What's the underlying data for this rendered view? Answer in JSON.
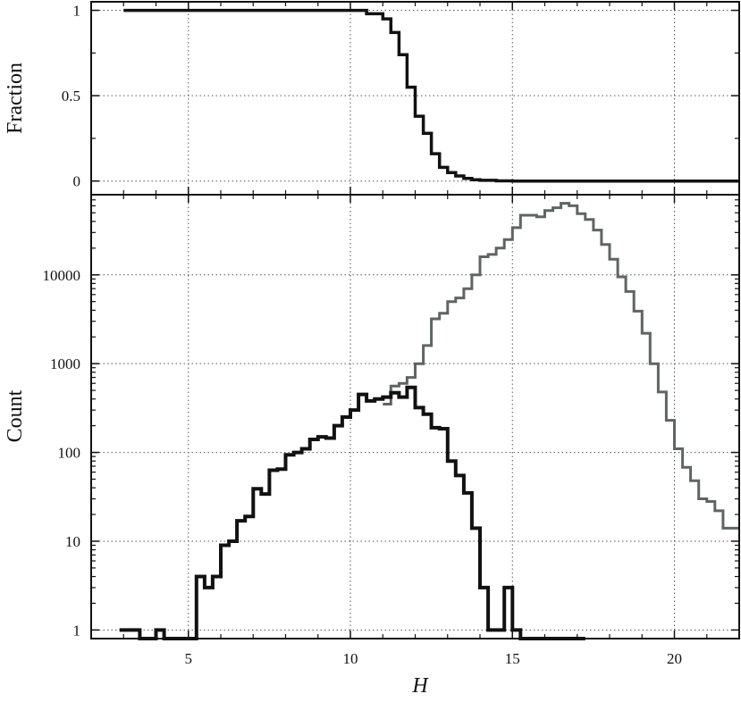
{
  "chart_data": [
    {
      "type": "line",
      "panel": "top",
      "ylabel": "Fraction",
      "xlabel": "",
      "xlim": [
        2,
        22
      ],
      "ylim": [
        -0.08,
        1.05
      ],
      "xticks": [
        5,
        10,
        15,
        20
      ],
      "yticks": [
        0,
        0.5,
        1
      ],
      "ytick_labels": [
        "0",
        "0.5",
        "1"
      ],
      "grid": true,
      "series": [
        {
          "color": "#111111",
          "x": [
            3.0,
            10.0,
            10.5,
            11.0,
            11.25,
            11.5,
            11.75,
            12.0,
            12.25,
            12.5,
            12.75,
            13.0,
            13.25,
            13.5,
            13.75,
            14.0,
            14.5,
            15.0,
            21.0
          ],
          "values": [
            1.0,
            1.0,
            0.98,
            0.95,
            0.87,
            0.74,
            0.55,
            0.38,
            0.28,
            0.16,
            0.08,
            0.05,
            0.03,
            0.015,
            0.008,
            0.004,
            0.001,
            0.0,
            0.0
          ]
        }
      ]
    },
    {
      "type": "line",
      "panel": "bottom",
      "ylabel": "Count",
      "xlabel": "H",
      "xlim": [
        2,
        22
      ],
      "ylog": true,
      "ylim": [
        0.8,
        80000
      ],
      "xticks": [
        5,
        10,
        15,
        20
      ],
      "xtick_labels": [
        "5",
        "10",
        "15",
        "20"
      ],
      "yticks": [
        1,
        10,
        100,
        1000,
        10000
      ],
      "ytick_labels": [
        "1",
        "10",
        "100",
        "1000",
        "10000"
      ],
      "grid": true,
      "series": [
        {
          "color": "#5f6464",
          "x": [
            11.0,
            11.25,
            11.5,
            11.75,
            12.0,
            12.25,
            12.5,
            12.75,
            13.0,
            13.25,
            13.5,
            13.75,
            14.0,
            14.25,
            14.5,
            14.75,
            15.0,
            15.25,
            15.5,
            15.75,
            16.0,
            16.25,
            16.5,
            16.75,
            17.0,
            17.25,
            17.5,
            17.75,
            18.0,
            18.25,
            18.5,
            18.75,
            19.0,
            19.25,
            19.5,
            19.75,
            20.0,
            20.25,
            20.5,
            20.75,
            21.0,
            21.25,
            21.5,
            21.75
          ],
          "values": [
            350,
            560,
            600,
            700,
            1000,
            1600,
            3200,
            3700,
            5000,
            5500,
            7000,
            10000,
            16000,
            17000,
            20000,
            25000,
            34000,
            47000,
            47000,
            45000,
            53000,
            57000,
            64000,
            60000,
            49000,
            42000,
            32000,
            22000,
            15000,
            9500,
            6500,
            3900,
            2200,
            1000,
            480,
            230,
            110,
            68,
            48,
            30,
            28,
            22,
            14,
            14
          ]
        },
        {
          "color": "#111111",
          "x": [
            2.875,
            3.5,
            3.75,
            4.0,
            4.25,
            5.0,
            5.25,
            5.5,
            5.75,
            6.0,
            6.25,
            6.5,
            6.75,
            7.0,
            7.25,
            7.5,
            7.75,
            8.0,
            8.25,
            8.5,
            8.75,
            9.0,
            9.25,
            9.5,
            9.75,
            10.0,
            10.25,
            10.5,
            10.75,
            11.0,
            11.25,
            11.5,
            11.75,
            12.0,
            12.25,
            12.5,
            12.75,
            13.0,
            13.25,
            13.5,
            13.75,
            14.0,
            14.25,
            14.5,
            14.75,
            15.0,
            15.25,
            15.5,
            15.75,
            16.0,
            16.25,
            16.5,
            16.75,
            17.0
          ],
          "values": [
            1,
            0.8,
            0.8,
            1,
            0.8,
            0.8,
            4,
            3,
            4,
            9,
            10,
            17,
            19,
            39,
            34,
            63,
            65,
            94,
            100,
            110,
            140,
            150,
            145,
            200,
            250,
            300,
            450,
            380,
            400,
            420,
            470,
            420,
            540,
            320,
            270,
            190,
            185,
            80,
            55,
            35,
            14,
            3,
            1,
            1,
            3,
            1,
            0.8,
            0.8,
            0.8,
            0.8,
            0.8,
            0.8,
            0.8,
            0.8
          ]
        }
      ]
    }
  ]
}
